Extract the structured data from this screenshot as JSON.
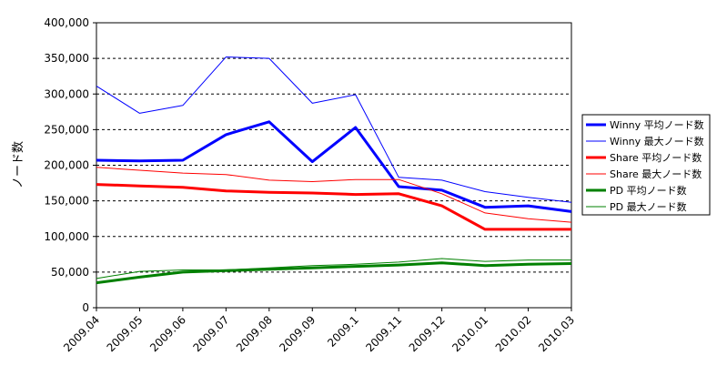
{
  "chart_data": {
    "type": "line",
    "ylabel": "ノード数",
    "ylim": [
      0,
      400000
    ],
    "yticks": [
      0,
      50000,
      100000,
      150000,
      200000,
      250000,
      300000,
      350000,
      400000
    ],
    "ytick_labels": [
      "0",
      "50,000",
      "100,000",
      "150,000",
      "200,000",
      "250,000",
      "300,000",
      "350,000",
      "400,000"
    ],
    "categories": [
      "2009.04",
      "2009.05",
      "2009.06",
      "2009.07",
      "2009.08",
      "2009.09",
      "2009.1",
      "2009.11",
      "2009.12",
      "2010.01",
      "2010.02",
      "2010.03"
    ],
    "grid": "horizontal dashed",
    "legend_position": "right",
    "series": [
      {
        "name": "Winny 平均ノード数",
        "color": "#0000ff",
        "weight": "thick",
        "values": [
          207000,
          206000,
          207000,
          243000,
          261000,
          205000,
          253000,
          170000,
          165000,
          141000,
          143000,
          135000
        ]
      },
      {
        "name": "Winny 最大ノード数",
        "color": "#0000ff",
        "weight": "thin",
        "values": [
          311000,
          273000,
          284000,
          352000,
          350000,
          287000,
          299000,
          183000,
          179000,
          163000,
          155000,
          148000
        ]
      },
      {
        "name": "Share 平均ノード数",
        "color": "#ff0000",
        "weight": "thick",
        "values": [
          173000,
          171000,
          169000,
          164000,
          162000,
          161000,
          159000,
          160000,
          143000,
          110000,
          110000,
          110000
        ]
      },
      {
        "name": "Share 最大ノード数",
        "color": "#ff0000",
        "weight": "thin",
        "values": [
          197000,
          193000,
          189000,
          187000,
          179000,
          177000,
          180000,
          180000,
          160000,
          133000,
          125000,
          120000
        ]
      },
      {
        "name": "PD 平均ノード数",
        "color": "#008000",
        "weight": "thick",
        "values": [
          35000,
          43000,
          50000,
          52000,
          54000,
          56000,
          58000,
          60000,
          63000,
          59000,
          61000,
          62000
        ]
      },
      {
        "name": "PD 最大ノード数",
        "color": "#008000",
        "weight": "thin",
        "values": [
          41000,
          51000,
          53000,
          53000,
          56000,
          59000,
          61000,
          64000,
          69000,
          65000,
          67000,
          67000
        ]
      }
    ]
  }
}
